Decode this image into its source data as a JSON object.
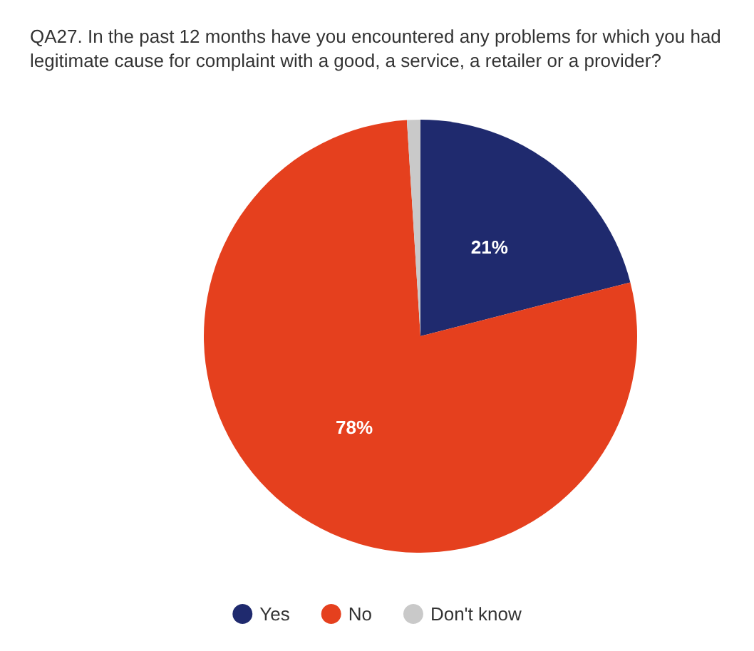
{
  "chart_data": {
    "type": "pie",
    "title": "QA27. In the past 12 months have you encountered any problems for which you had legitimate cause for complaint with a good, a service, a retailer or a provider?",
    "categories": [
      "Yes",
      "No",
      "Don't know"
    ],
    "values": [
      21,
      78,
      1
    ],
    "colors": [
      "#1f2a6e",
      "#e5401e",
      "#c9c9c9"
    ],
    "value_labels": [
      "21%",
      "78%",
      null
    ],
    "legend": "bottom"
  }
}
